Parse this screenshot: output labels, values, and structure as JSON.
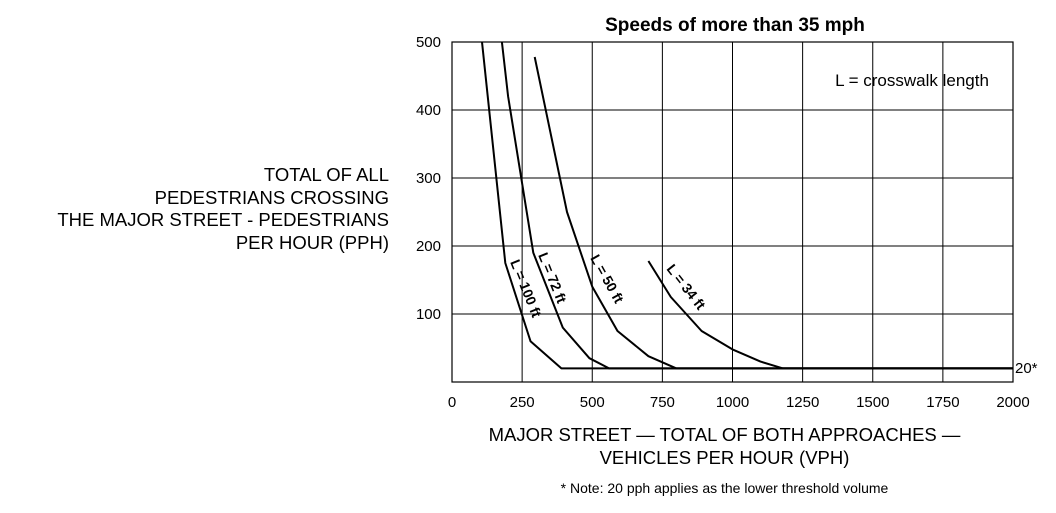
{
  "chart_data": {
    "type": "line",
    "title": "Speeds of more than 35 mph",
    "ylabel_lines": [
      "TOTAL OF ALL",
      "PEDESTRIANS CROSSING",
      "THE MAJOR STREET - PEDESTRIANS",
      "PER HOUR (PPH)"
    ],
    "xlabel_lines": [
      "MAJOR STREET — TOTAL OF BOTH APPROACHES —",
      "VEHICLES PER HOUR (VPH)"
    ],
    "legend_note": "L = crosswalk length",
    "footnote": "* Note: 20 pph applies as the lower threshold volume",
    "threshold_label": "20*",
    "xlim": [
      0,
      2000
    ],
    "ylim": [
      0,
      500
    ],
    "x_ticks": [
      0,
      250,
      500,
      750,
      1000,
      1250,
      1500,
      1750,
      2000
    ],
    "y_ticks": [
      100,
      200,
      300,
      400,
      500
    ],
    "grid": true,
    "series": [
      {
        "name": "L = 100 ft",
        "points": [
          [
            107,
            500
          ],
          [
            190,
            175
          ],
          [
            280,
            60
          ],
          [
            390,
            20
          ],
          [
            2000,
            20
          ]
        ]
      },
      {
        "name": "L = 72 ft",
        "points": [
          [
            178,
            500
          ],
          [
            200,
            420
          ],
          [
            290,
            190
          ],
          [
            395,
            80
          ],
          [
            490,
            35
          ],
          [
            560,
            20
          ],
          [
            2000,
            20
          ]
        ]
      },
      {
        "name": "L = 50 ft",
        "points": [
          [
            295,
            478
          ],
          [
            410,
            250
          ],
          [
            500,
            140
          ],
          [
            590,
            75
          ],
          [
            700,
            38
          ],
          [
            800,
            20
          ],
          [
            2000,
            20
          ]
        ]
      },
      {
        "name": "L = 34 ft",
        "points": [
          [
            700,
            178
          ],
          [
            780,
            125
          ],
          [
            890,
            75
          ],
          [
            1000,
            48
          ],
          [
            1100,
            30
          ],
          [
            1180,
            20
          ],
          [
            2000,
            20
          ]
        ]
      }
    ]
  }
}
